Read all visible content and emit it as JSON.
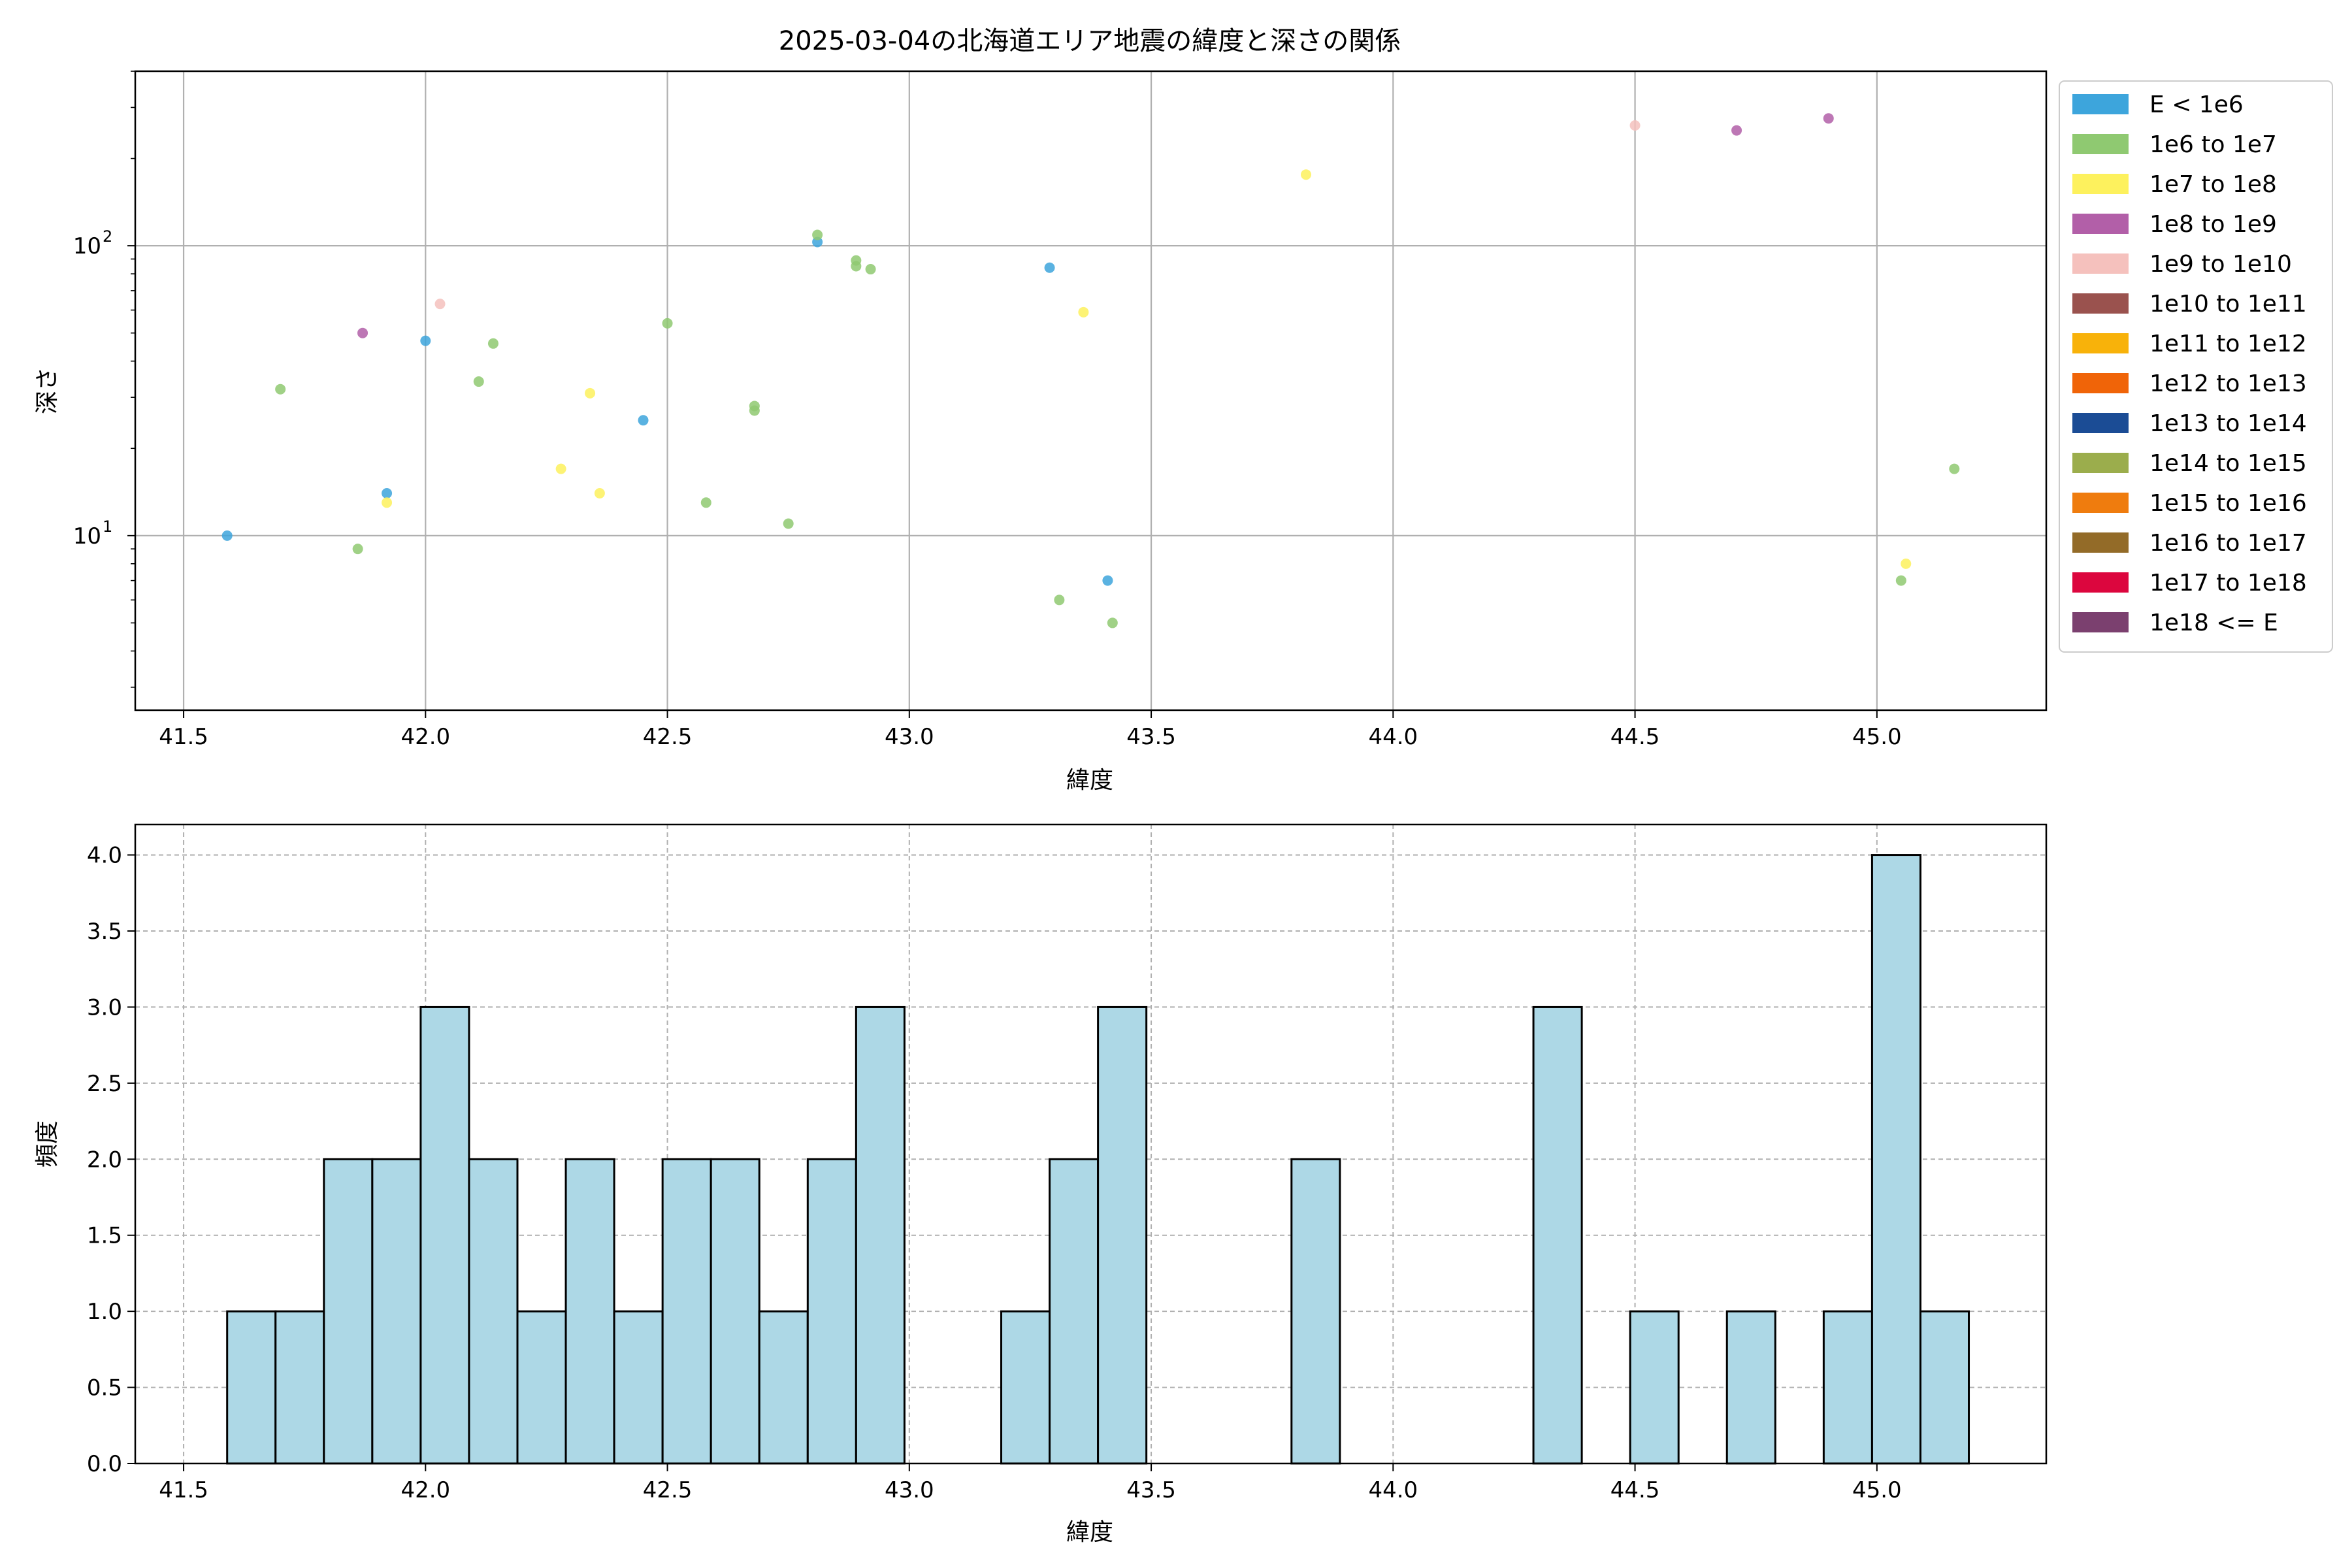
{
  "chart_data": [
    {
      "type": "scatter",
      "title": "2025-03-04の北海道エリア地震の緯度と深さの関係",
      "xlabel": "緯度",
      "ylabel": "深さ",
      "xlim": [
        41.4,
        45.35
      ],
      "ylim": [
        400,
        2.5
      ],
      "y_scale": "log",
      "y_inverted": true,
      "grid": true,
      "xticks": [
        41.5,
        42.0,
        42.5,
        43.0,
        43.5,
        44.0,
        44.5,
        45.0
      ],
      "xtick_labels": [
        "41.5",
        "42.0",
        "42.5",
        "43.0",
        "43.5",
        "44.0",
        "44.5",
        "45.0"
      ],
      "yticks": [
        10,
        100
      ],
      "ytick_labels": [
        {
          "base": "10",
          "exp": "1"
        },
        {
          "base": "10",
          "exp": "2"
        }
      ],
      "legend_placement": "outside-right",
      "legend": [
        {
          "label": "E < 1e6",
          "color": "#3da5dc"
        },
        {
          "label": "1e6 to 1e7",
          "color": "#8fc971"
        },
        {
          "label": "1e7 to 1e8",
          "color": "#fdf15d"
        },
        {
          "label": "1e8 to 1e9",
          "color": "#b25fa8"
        },
        {
          "label": "1e9 to 1e10",
          "color": "#f5c1bd"
        },
        {
          "label": "1e10 to 1e11",
          "color": "#9a524e"
        },
        {
          "label": "1e11 to 1e12",
          "color": "#f8b20a"
        },
        {
          "label": "1e12 to 1e13",
          "color": "#f06408"
        },
        {
          "label": "1e13 to 1e14",
          "color": "#1b4c95"
        },
        {
          "label": "1e14 to 1e15",
          "color": "#9bad4c"
        },
        {
          "label": "1e15 to 1e16",
          "color": "#ef7c0e"
        },
        {
          "label": "1e16 to 1e17",
          "color": "#936b28"
        },
        {
          "label": "1e17 to 1e18",
          "color": "#dc063e"
        },
        {
          "label": "1e18 <= E",
          "color": "#7b406f"
        }
      ],
      "points": [
        {
          "x": 41.59,
          "y": 10,
          "c": 0
        },
        {
          "x": 41.92,
          "y": 14,
          "c": 0
        },
        {
          "x": 42.0,
          "y": 47,
          "c": 0
        },
        {
          "x": 42.45,
          "y": 25,
          "c": 0
        },
        {
          "x": 42.81,
          "y": 103,
          "c": 0
        },
        {
          "x": 43.29,
          "y": 84,
          "c": 0
        },
        {
          "x": 43.41,
          "y": 7,
          "c": 0
        },
        {
          "x": 41.7,
          "y": 32,
          "c": 1
        },
        {
          "x": 41.86,
          "y": 9,
          "c": 1
        },
        {
          "x": 42.11,
          "y": 34,
          "c": 1
        },
        {
          "x": 42.14,
          "y": 46,
          "c": 1
        },
        {
          "x": 42.5,
          "y": 54,
          "c": 1
        },
        {
          "x": 42.58,
          "y": 13,
          "c": 1
        },
        {
          "x": 42.68,
          "y": 27,
          "c": 1
        },
        {
          "x": 42.68,
          "y": 28,
          "c": 1
        },
        {
          "x": 42.75,
          "y": 11,
          "c": 1
        },
        {
          "x": 42.81,
          "y": 109,
          "c": 1
        },
        {
          "x": 42.89,
          "y": 85,
          "c": 1
        },
        {
          "x": 42.89,
          "y": 89,
          "c": 1
        },
        {
          "x": 42.92,
          "y": 83,
          "c": 1
        },
        {
          "x": 43.31,
          "y": 6,
          "c": 1
        },
        {
          "x": 43.42,
          "y": 5,
          "c": 1
        },
        {
          "x": 45.05,
          "y": 7,
          "c": 1
        },
        {
          "x": 45.16,
          "y": 17,
          "c": 1
        },
        {
          "x": 41.92,
          "y": 13,
          "c": 2
        },
        {
          "x": 42.28,
          "y": 17,
          "c": 2
        },
        {
          "x": 42.34,
          "y": 31,
          "c": 2
        },
        {
          "x": 42.36,
          "y": 14,
          "c": 2
        },
        {
          "x": 43.36,
          "y": 59,
          "c": 2
        },
        {
          "x": 43.82,
          "y": 176,
          "c": 2
        },
        {
          "x": 45.06,
          "y": 8,
          "c": 2
        },
        {
          "x": 41.87,
          "y": 50,
          "c": 3
        },
        {
          "x": 44.71,
          "y": 250,
          "c": 3
        },
        {
          "x": 44.9,
          "y": 275,
          "c": 3
        },
        {
          "x": 42.03,
          "y": 63,
          "c": 4
        },
        {
          "x": 44.5,
          "y": 260,
          "c": 4
        }
      ]
    },
    {
      "type": "bar",
      "subtype": "histogram",
      "title": "",
      "xlabel": "緯度",
      "ylabel": "頻度",
      "xlim": [
        41.4,
        45.35
      ],
      "ylim": [
        0,
        4.2
      ],
      "grid": true,
      "bar_color": "#add8e6",
      "edge_color": "#000000",
      "xticks": [
        41.5,
        42.0,
        42.5,
        43.0,
        43.5,
        44.0,
        44.5,
        45.0
      ],
      "xtick_labels": [
        "41.5",
        "42.0",
        "42.5",
        "43.0",
        "43.5",
        "44.0",
        "44.5",
        "45.0"
      ],
      "yticks": [
        0,
        0.5,
        1.0,
        1.5,
        2.0,
        2.5,
        3.0,
        3.5,
        4.0
      ],
      "ytick_labels": [
        "0.0",
        "0.5",
        "1.0",
        "1.5",
        "2.0",
        "2.5",
        "3.0",
        "3.5",
        "4.0"
      ],
      "bin_start": 41.59,
      "bin_width": 0.1,
      "values": [
        1,
        1,
        2,
        2,
        3,
        2,
        1,
        2,
        1,
        2,
        2,
        1,
        2,
        3,
        0,
        0,
        1,
        2,
        3,
        0,
        0,
        0,
        2,
        0,
        0,
        0,
        0,
        3,
        0,
        1,
        0,
        1,
        0,
        1,
        4,
        1
      ]
    }
  ]
}
